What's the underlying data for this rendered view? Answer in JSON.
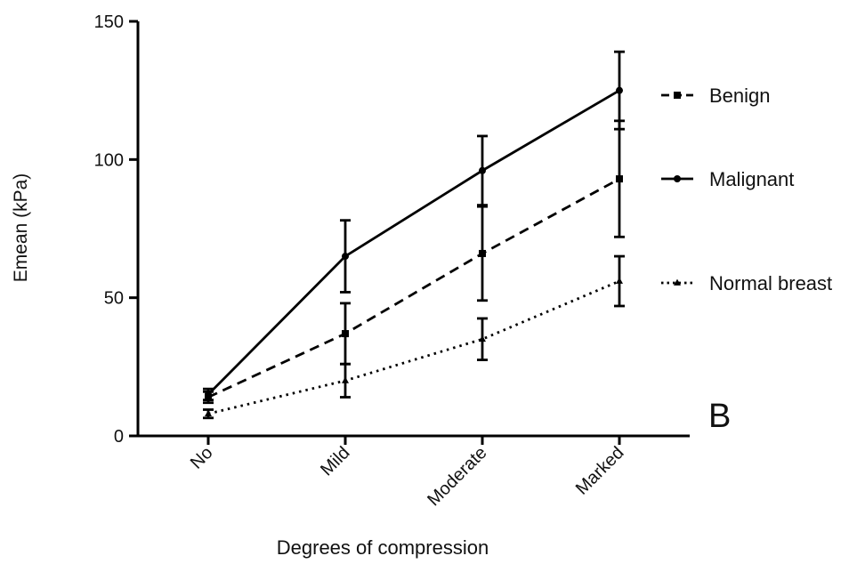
{
  "chart_data": {
    "type": "line",
    "panel_label": "B",
    "xlabel": "Degrees of compression",
    "ylabel": "Emean (kPa)",
    "categories": [
      "No",
      "Mild",
      "Moderate",
      "Marked"
    ],
    "ylim": [
      0,
      150
    ],
    "yticks": [
      0,
      50,
      100,
      150
    ],
    "grid": false,
    "legend_position": "right",
    "series": [
      {
        "name": "Benign",
        "marker": "square",
        "line_style": "dashed",
        "values": [
          14,
          37,
          66,
          93
        ],
        "error": [
          2,
          11,
          17,
          21
        ]
      },
      {
        "name": "Malignant",
        "marker": "circle",
        "line_style": "solid",
        "values": [
          15,
          65,
          96,
          125
        ],
        "error": [
          2,
          13,
          12.5,
          14
        ]
      },
      {
        "name": "Normal breast",
        "marker": "triangle",
        "line_style": "dotted",
        "values": [
          8,
          20,
          35,
          56
        ],
        "error": [
          1.5,
          6,
          7.5,
          9
        ]
      }
    ]
  }
}
